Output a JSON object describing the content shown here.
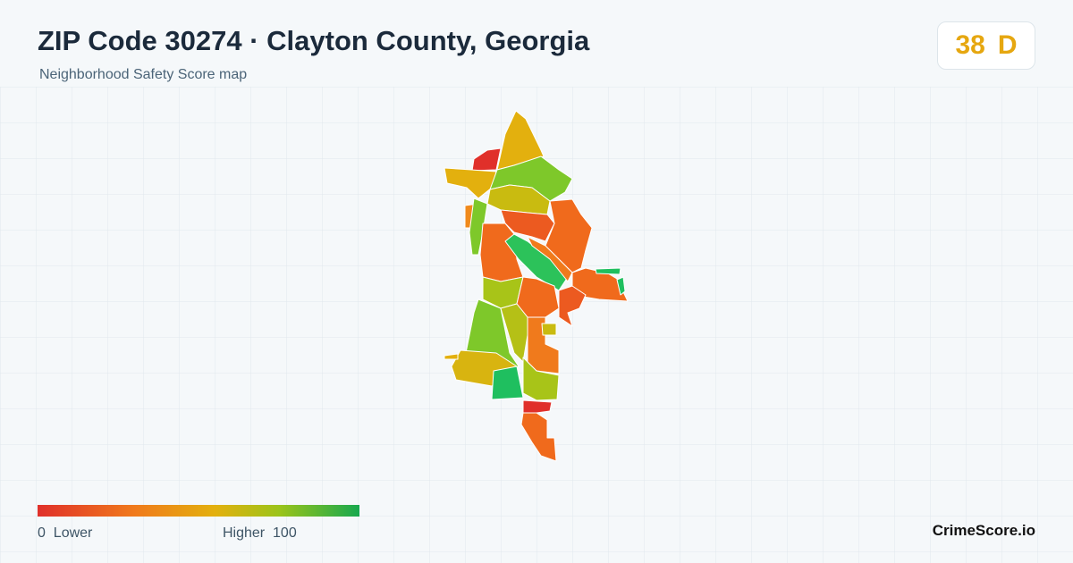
{
  "header": {
    "title": "ZIP Code 30274 · Clayton County, Georgia",
    "subtitle": "Neighborhood Safety Score map"
  },
  "score": {
    "value": 38,
    "grade": "D"
  },
  "legend": {
    "min": 0,
    "min_label": "Lower",
    "max_label": "Higher",
    "max": 100
  },
  "footer": {
    "brand": "CrimeScore.io"
  }
}
